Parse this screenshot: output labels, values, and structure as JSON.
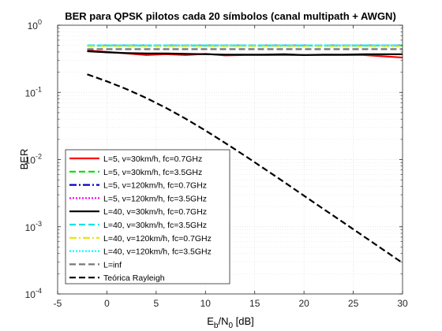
{
  "chart_data": {
    "type": "line",
    "title": "BER para QPSK pilotos cada 20 símbolos (canal multipath + AWGN)",
    "xlabel": "E",
    "xlabel_sub1": "b",
    "xlabel_mid": "/N",
    "xlabel_sub2": "0",
    "xlabel_unit": " [dB]",
    "ylabel": "BER",
    "xlim": [
      -5,
      30
    ],
    "ylim": [
      0.0001,
      1
    ],
    "y_scale": "log",
    "grid": true,
    "minor_grid": true,
    "legend_position": "bottom-left",
    "xticks": [
      -5,
      0,
      5,
      10,
      15,
      20,
      25,
      30
    ],
    "yticks": [
      {
        "base": "10",
        "exp": "0",
        "value": 1
      },
      {
        "base": "10",
        "exp": "-1",
        "value": 0.1
      },
      {
        "base": "10",
        "exp": "-2",
        "value": 0.01
      },
      {
        "base": "10",
        "exp": "-3",
        "value": 0.001
      },
      {
        "base": "10",
        "exp": "-4",
        "value": 0.0001
      }
    ],
    "x": [
      -2,
      0,
      2,
      4,
      6,
      8,
      10,
      12,
      14,
      16,
      18,
      20,
      22,
      24,
      26,
      28,
      30
    ],
    "series": [
      {
        "name": "L=5, v=30km/h, fc=0.7GHz",
        "color": "#ff0000",
        "dash": "solid",
        "values": [
          0.42,
          0.4,
          0.38,
          0.36,
          0.37,
          0.36,
          0.375,
          0.355,
          0.36,
          0.36,
          0.36,
          0.36,
          0.36,
          0.36,
          0.36,
          0.345,
          0.33
        ]
      },
      {
        "name": "L=5, v=30km/h, fc=3.5GHz",
        "color": "#00e000",
        "dash": "dashed",
        "values": [
          0.5,
          0.5,
          0.5,
          0.5,
          0.5,
          0.5,
          0.5,
          0.5,
          0.5,
          0.5,
          0.5,
          0.5,
          0.5,
          0.5,
          0.5,
          0.5,
          0.5
        ]
      },
      {
        "name": "L=5, v=120km/h, fc=0.7GHz",
        "color": "#0000c8",
        "dash": "dashdot",
        "values": [
          0.5,
          0.5,
          0.5,
          0.5,
          0.5,
          0.5,
          0.5,
          0.5,
          0.5,
          0.5,
          0.5,
          0.5,
          0.5,
          0.5,
          0.5,
          0.5,
          0.5
        ]
      },
      {
        "name": "L=5, v=120km/h, fc=3.5GHz",
        "color": "#ff00ff",
        "dash": "dotted",
        "values": [
          0.5,
          0.5,
          0.5,
          0.5,
          0.5,
          0.5,
          0.5,
          0.5,
          0.5,
          0.5,
          0.5,
          0.5,
          0.5,
          0.5,
          0.5,
          0.5,
          0.5
        ]
      },
      {
        "name": "L=40, v=30km/h, fc=0.7GHz",
        "color": "#000000",
        "dash": "solid",
        "values": [
          0.41,
          0.395,
          0.385,
          0.38,
          0.38,
          0.375,
          0.37,
          0.365,
          0.365,
          0.365,
          0.37,
          0.36,
          0.365,
          0.365,
          0.37,
          0.37,
          0.37
        ]
      },
      {
        "name": "L=40, v=30km/h, fc=3.5GHz",
        "color": "#00e5e5",
        "dash": "dashed",
        "values": [
          0.5,
          0.5,
          0.5,
          0.5,
          0.5,
          0.5,
          0.5,
          0.5,
          0.5,
          0.5,
          0.5,
          0.5,
          0.5,
          0.5,
          0.5,
          0.5,
          0.5
        ]
      },
      {
        "name": "L=40, v=120km/h, fc=0.7GHz",
        "color": "#e5e500",
        "dash": "dashdot",
        "values": [
          0.49,
          0.49,
          0.49,
          0.49,
          0.49,
          0.49,
          0.49,
          0.49,
          0.49,
          0.49,
          0.49,
          0.49,
          0.49,
          0.49,
          0.49,
          0.49,
          0.49
        ]
      },
      {
        "name": "L=40, v=120km/h, fc=3.5GHz",
        "color": "#00ffff",
        "dash": "dotted",
        "values": [
          0.5,
          0.5,
          0.5,
          0.5,
          0.5,
          0.5,
          0.5,
          0.5,
          0.5,
          0.5,
          0.5,
          0.5,
          0.5,
          0.5,
          0.5,
          0.5,
          0.5
        ]
      },
      {
        "name": "L=inf",
        "color": "#777777",
        "dash": "dashed",
        "values": [
          0.44,
          0.44,
          0.44,
          0.44,
          0.44,
          0.44,
          0.44,
          0.44,
          0.44,
          0.44,
          0.44,
          0.44,
          0.44,
          0.44,
          0.44,
          0.44,
          0.44
        ]
      },
      {
        "name": "Teórica Rayleigh",
        "color": "#000000",
        "dash": "dashed",
        "values": [
          0.186,
          0.146,
          0.112,
          0.0825,
          0.0588,
          0.0405,
          0.0271,
          0.0177,
          0.0114,
          0.00727,
          0.0046,
          0.0029,
          0.00183,
          0.00116,
          0.00073,
          0.00046,
          0.00029
        ]
      }
    ]
  }
}
